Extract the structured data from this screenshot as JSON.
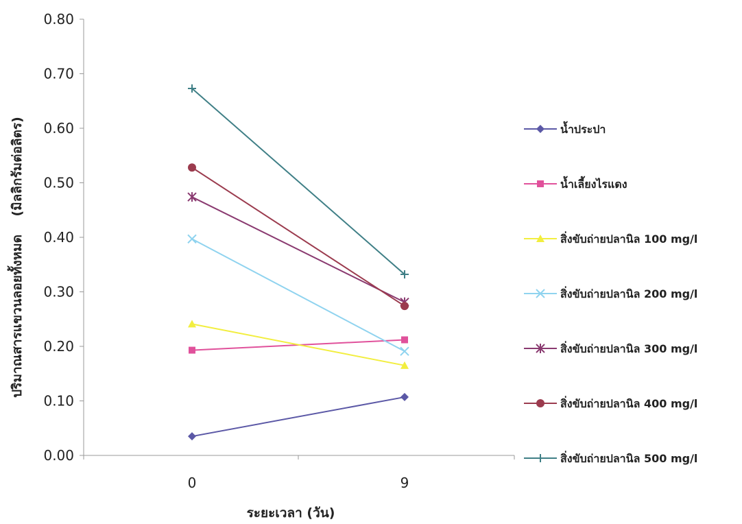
{
  "chart_data": {
    "type": "line",
    "title": "",
    "xlabel": "ระยะเวลา (วัน)",
    "ylabel": "ปริมาณสารแขวนลอยทั้งหมด    (มิลลิกรัมต่อลิตร)",
    "x": [
      "0",
      "9"
    ],
    "ylim": [
      0,
      0.8
    ],
    "yticks": [
      "0.00",
      "0.10",
      "0.20",
      "0.30",
      "0.40",
      "0.50",
      "0.60",
      "0.70",
      "0.80"
    ],
    "grid": false,
    "legend_position": "right",
    "series": [
      {
        "name": "น้ำประปา",
        "values": [
          0.035,
          0.107
        ],
        "color": "#5b58a6",
        "marker": "diamond"
      },
      {
        "name": "น้ำเลี้ยงไรแดง",
        "values": [
          0.193,
          0.212
        ],
        "color": "#e0519b",
        "marker": "square"
      },
      {
        "name": "สิ่งขับถ่ายปลานิล 100 mg/l",
        "values": [
          0.241,
          0.165
        ],
        "color": "#f2ee3f",
        "marker": "triangle"
      },
      {
        "name": "สิ่งขับถ่ายปลานิล  200 mg/l",
        "values": [
          0.397,
          0.191
        ],
        "color": "#8fd3ef",
        "marker": "x"
      },
      {
        "name": "สิ่งขับถ่ายปลานิล  300 mg/l",
        "values": [
          0.474,
          0.281
        ],
        "color": "#8a3a70",
        "marker": "star"
      },
      {
        "name": "สิ่งขับถ่ายปลานิล  400 mg/l",
        "values": [
          0.528,
          0.274
        ],
        "color": "#9b3b4e",
        "marker": "circle"
      },
      {
        "name": "สิ่งขับถ่ายปลานิล  500 mg/l",
        "values": [
          0.673,
          0.332
        ],
        "color": "#3f7f86",
        "marker": "plus"
      }
    ]
  }
}
